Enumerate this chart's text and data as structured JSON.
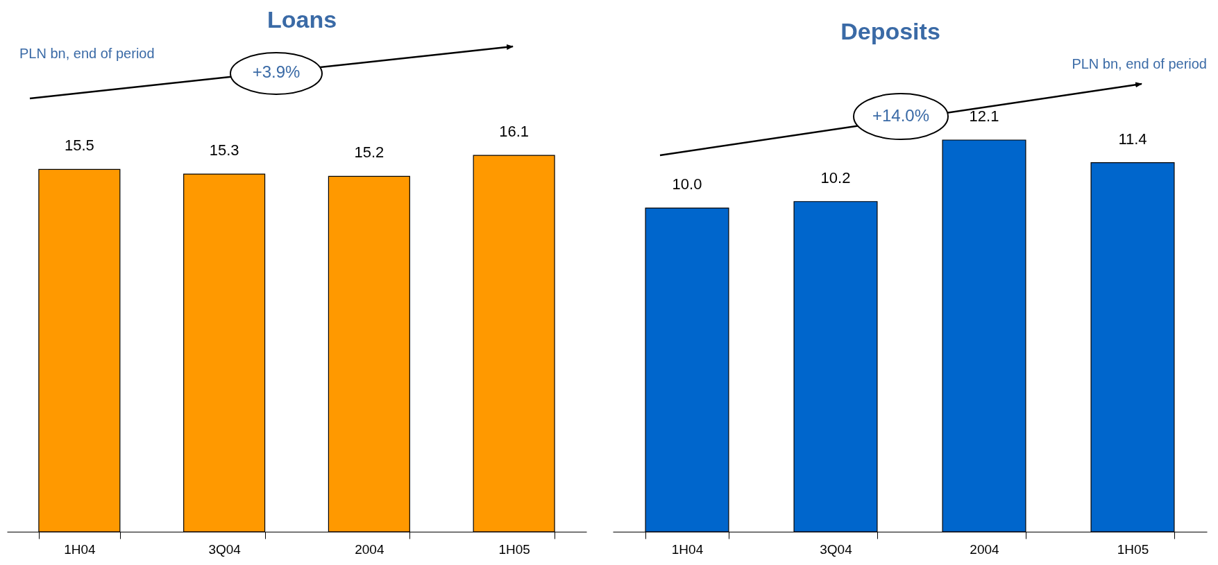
{
  "chart_data": [
    {
      "type": "bar",
      "title": "Loans",
      "subtitle": "PLN bn, end of period",
      "categories": [
        "1H04",
        "3Q04",
        "2004",
        "1H05"
      ],
      "values": [
        15.5,
        15.3,
        15.2,
        16.1
      ],
      "color": "#ff9900",
      "data_labels": true,
      "tick_labels": "x",
      "annotations": [
        "+3.9%"
      ]
    },
    {
      "type": "bar",
      "title": "Deposits",
      "subtitle": "PLN bn, end of period",
      "categories": [
        "1H04",
        "3Q04",
        "2004",
        "1H05"
      ],
      "values": [
        10.0,
        10.2,
        12.1,
        11.4
      ],
      "value_labels": [
        "10.0",
        "10.2",
        "12.1",
        "11.4"
      ],
      "color": "#0066cc",
      "tick_labels": "x",
      "annotations": [
        "+14.0%"
      ]
    }
  ]
}
